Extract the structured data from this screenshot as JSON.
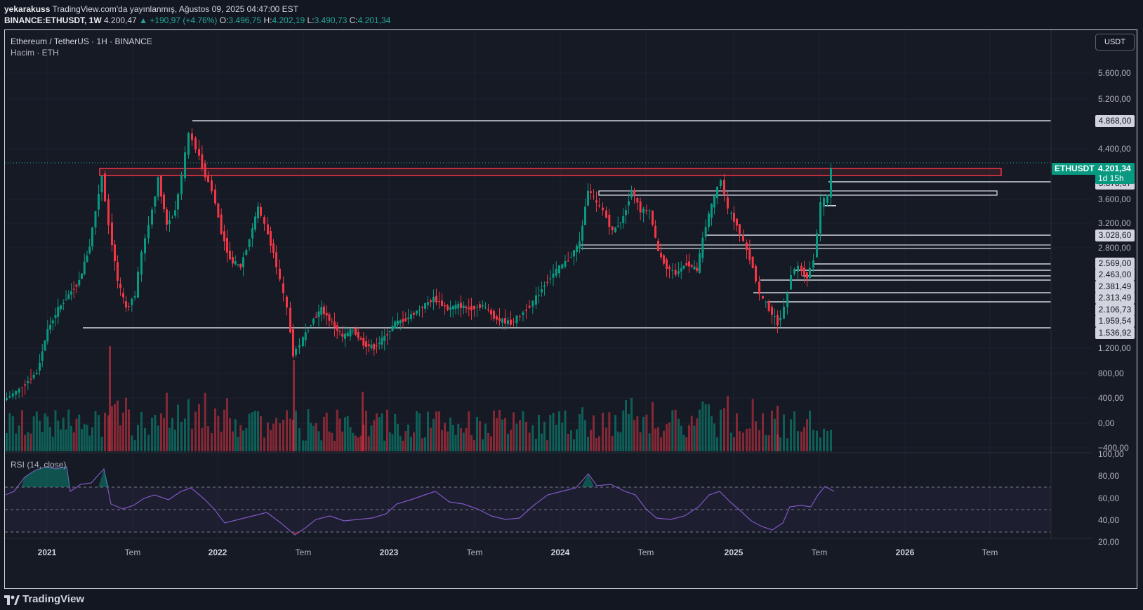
{
  "header": {
    "author": "yekarakuss",
    "published": "TradingView.com'da yayınlanmış, Ağustos 09, 2025 04:47:00 EST",
    "symbol": "BINANCE:ETHUSDT, 1W",
    "last": "4.200,47",
    "arrow": "▲",
    "change": "+190,97 (+4.76%)",
    "o_label": "O:",
    "o_value": "3.496,75",
    "h_label": "H:",
    "h_value": "4.202,19",
    "l_label": "L:",
    "l_value": "3.490,73",
    "c_label": "C:",
    "c_value": "4.201,34"
  },
  "legend": {
    "title": "Ethereum / TetherUS · 1H · BINANCE",
    "volume": "Hacim · ETH",
    "rsi": "RSI (14, close)"
  },
  "currency_button": "USDT",
  "price_axis": [
    "5.600,00",
    "5.200,00",
    "4.400,00",
    "3.600,00",
    "3.200,00",
    "2.800,00",
    "1.200,00",
    "800,00",
    "400,00",
    "0,00",
    "−400,00"
  ],
  "rsi_axis": [
    "100,00",
    "80,00",
    "60,00",
    "40,00",
    "20,00"
  ],
  "price_tags": [
    "4.868,00",
    "3.878,67",
    "3.028,60",
    "2.569,00",
    "2.463,00",
    "2.381,49",
    "2.313,49",
    "2.106,73",
    "1.959,54",
    "1.536,92"
  ],
  "current": {
    "symbol": "ETHUSDT",
    "price": "4.201,34",
    "countdown": "1d 15h"
  },
  "time_axis": [
    {
      "label": "2021",
      "strong": true
    },
    {
      "label": "Tem",
      "strong": false
    },
    {
      "label": "2022",
      "strong": true
    },
    {
      "label": "Tem",
      "strong": false
    },
    {
      "label": "2023",
      "strong": true
    },
    {
      "label": "Tem",
      "strong": false
    },
    {
      "label": "2024",
      "strong": true
    },
    {
      "label": "Tem",
      "strong": false
    },
    {
      "label": "2025",
      "strong": true
    },
    {
      "label": "Tem",
      "strong": false
    },
    {
      "label": "2026",
      "strong": true
    },
    {
      "label": "Tem",
      "strong": false
    }
  ],
  "footer": {
    "brand": "TradingView"
  },
  "colors": {
    "up": "#089981",
    "down": "#f23645",
    "rsi": "#7e57c2",
    "zone": "#f23645"
  },
  "chart_data": {
    "type": "candlestick",
    "title": "Ethereum / TetherUS · 1H · BINANCE",
    "price_close_approx": [
      {
        "x": "2021-01",
        "close": 730
      },
      {
        "x": "2021-05",
        "close": 3900
      },
      {
        "x": "2021-07",
        "close": 1900
      },
      {
        "x": "2021-11",
        "close": 4868
      },
      {
        "x": "2022-06",
        "close": 1000
      },
      {
        "x": "2022-08",
        "close": 1950
      },
      {
        "x": "2022-12",
        "close": 1200
      },
      {
        "x": "2023-04",
        "close": 2100
      },
      {
        "x": "2023-10",
        "close": 1550
      },
      {
        "x": "2024-03",
        "close": 4000
      },
      {
        "x": "2024-08",
        "close": 2300
      },
      {
        "x": "2024-12",
        "close": 4100
      },
      {
        "x": "2025-04",
        "close": 1400
      },
      {
        "x": "2025-08",
        "close": 4201
      }
    ],
    "horizontal_levels": [
      4868.0,
      3878.67,
      3028.6,
      2569.0,
      2463.0,
      2381.49,
      2313.49,
      2106.73,
      1959.54,
      1536.92
    ],
    "resistance_zone": [
      3900,
      4100
    ],
    "rsi_period": 14,
    "rsi_levels": [
      70,
      50,
      30
    ]
  }
}
